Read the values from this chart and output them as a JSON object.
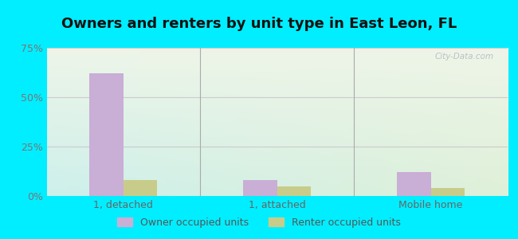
{
  "title": "Owners and renters by unit type in East Leon, FL",
  "categories": [
    "1, detached",
    "1, attached",
    "Mobile home"
  ],
  "owner_values": [
    62,
    8,
    12
  ],
  "renter_values": [
    8,
    5,
    4
  ],
  "owner_color": "#c9aed6",
  "renter_color": "#c8cc8a",
  "bar_width": 0.22,
  "ylim": [
    0,
    75
  ],
  "yticks": [
    0,
    25,
    50,
    75
  ],
  "yticklabels": [
    "0%",
    "25%",
    "50%",
    "75%"
  ],
  "background_outer": "#00eeff",
  "grid_color": "#cccccc",
  "watermark": "City-Data.com",
  "legend_owner": "Owner occupied units",
  "legend_renter": "Renter occupied units",
  "title_fontsize": 13,
  "axis_fontsize": 9,
  "legend_fontsize": 9
}
